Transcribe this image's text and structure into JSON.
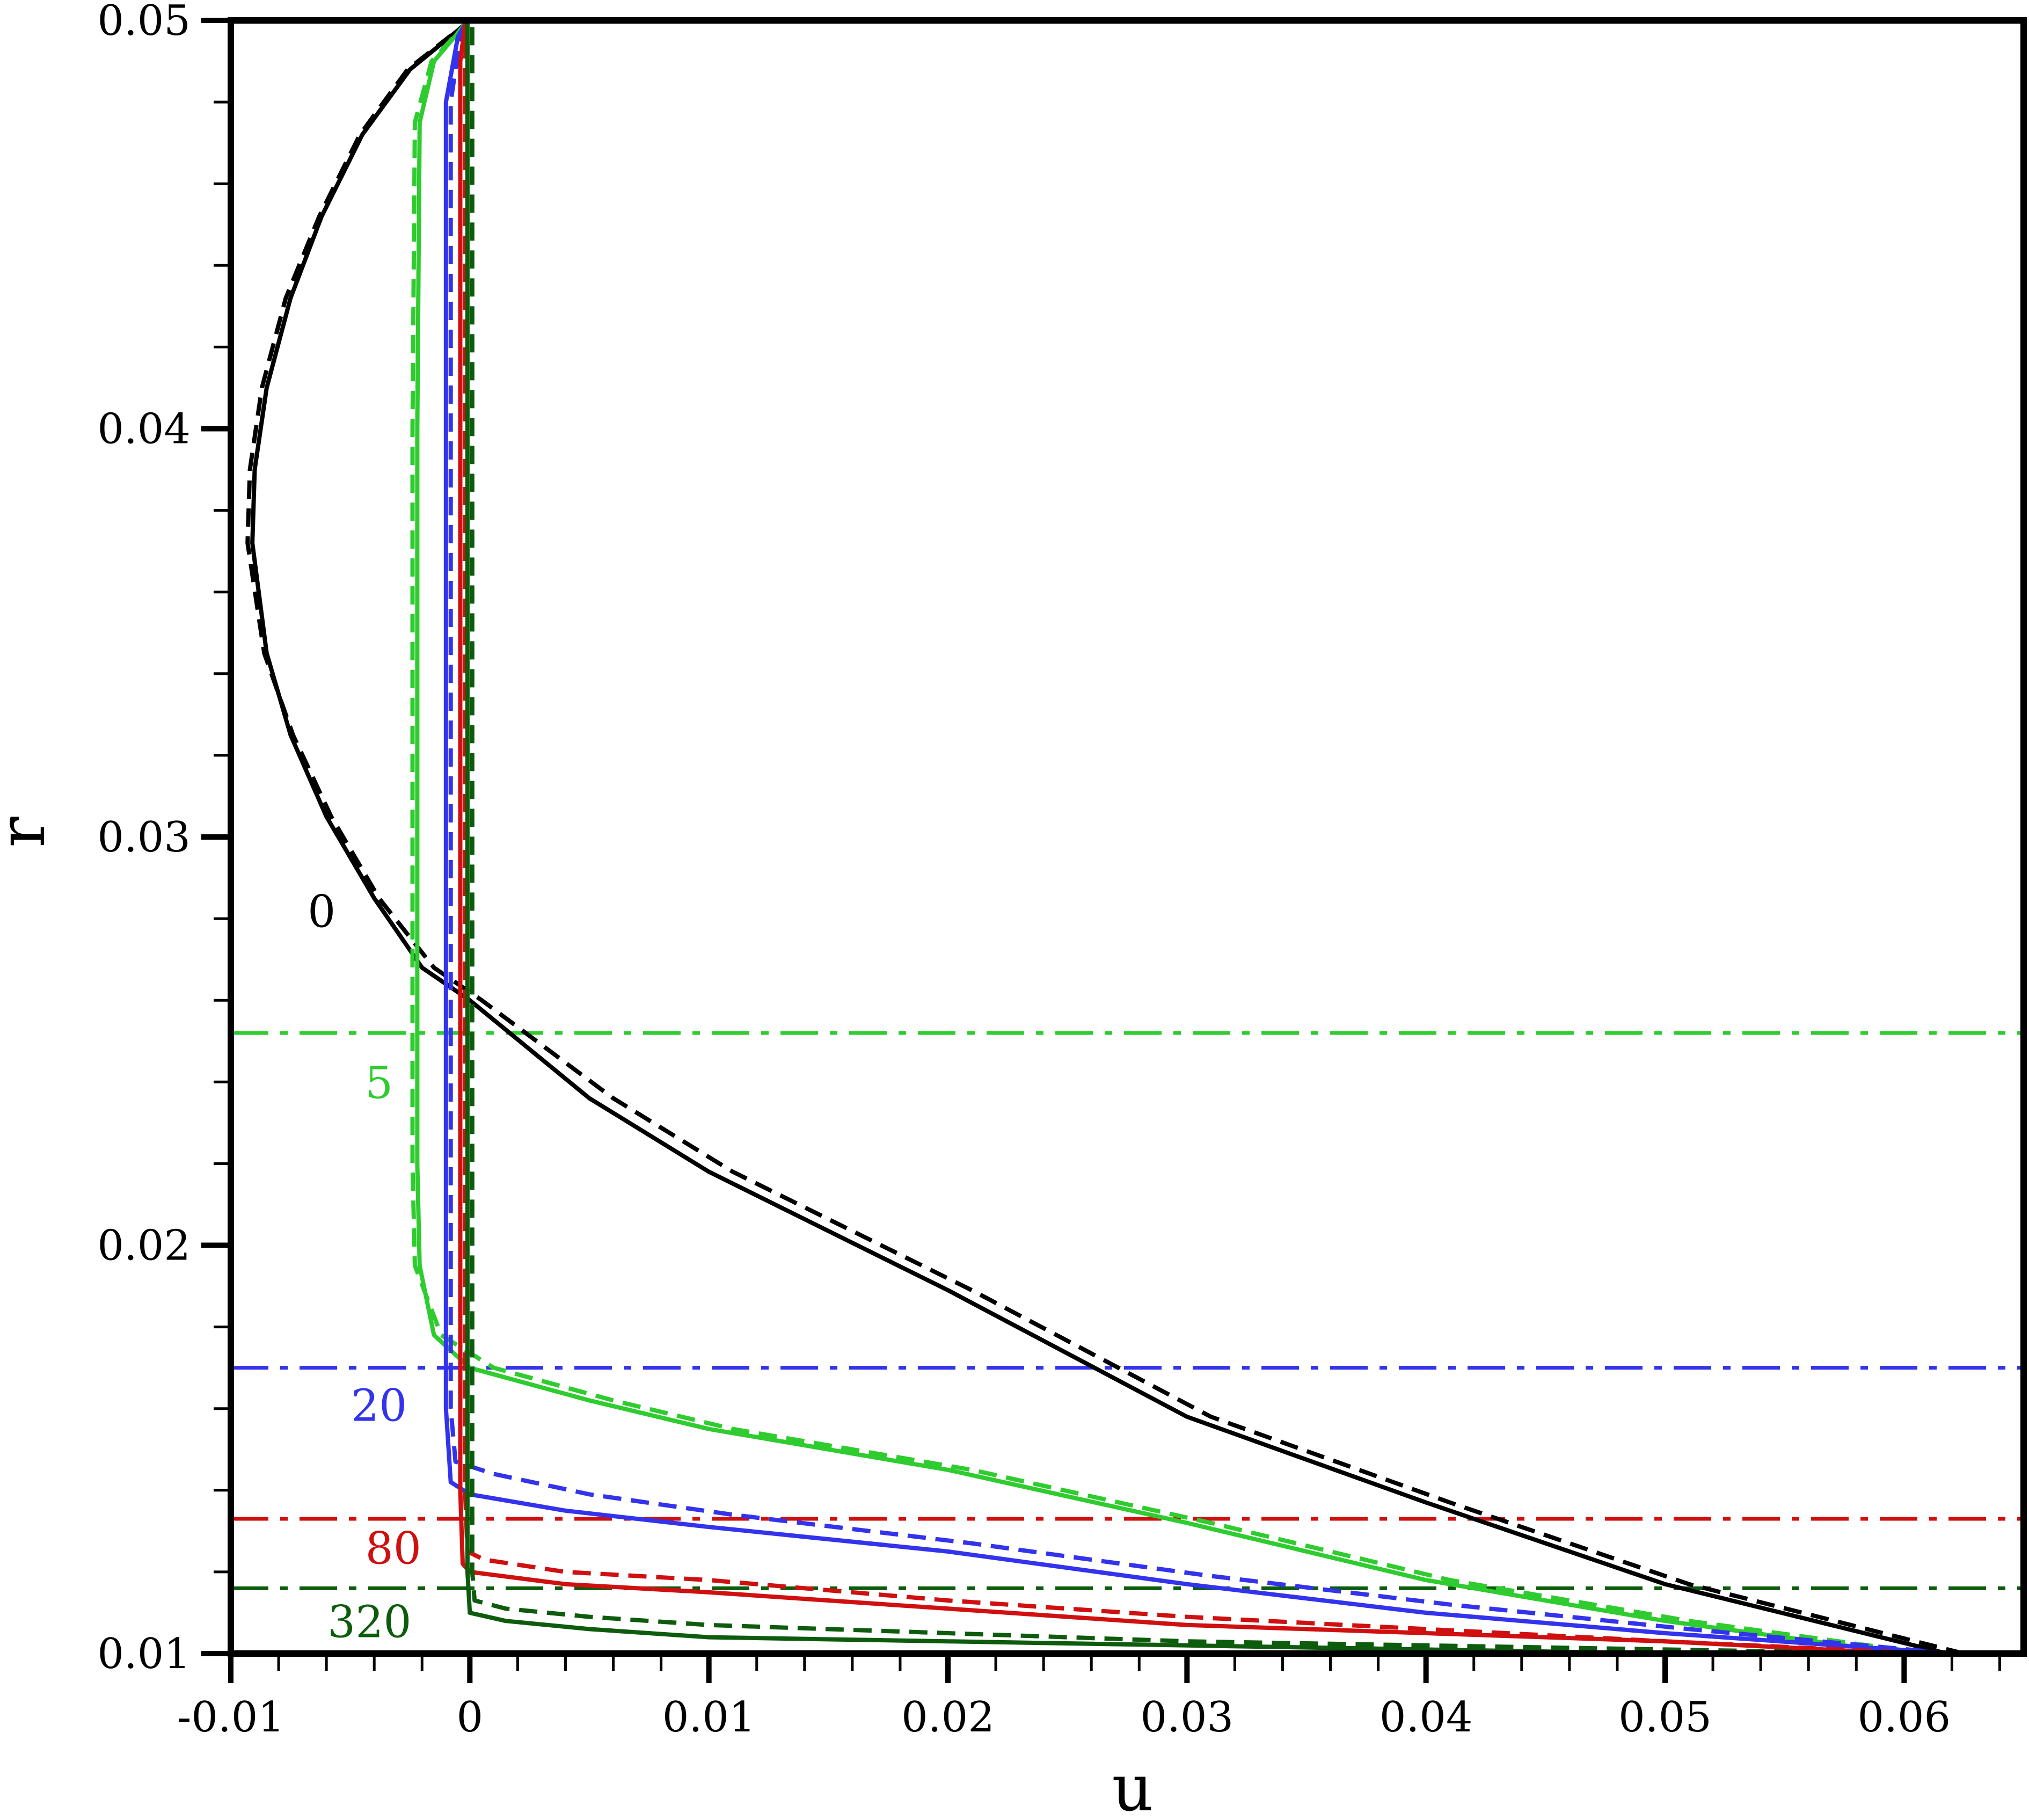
{
  "chart_data": {
    "type": "line",
    "title": "",
    "xlabel": "u",
    "ylabel": "r",
    "xlim": [
      -0.01,
      0.065
    ],
    "ylim": [
      0.01,
      0.05
    ],
    "grid": false,
    "legend": "none",
    "x_ticks": [
      "-0.01",
      "0",
      "0.01",
      "0.02",
      "0.03",
      "0.04",
      "0.05",
      "0.06"
    ],
    "x_tick_values": [
      -0.01,
      0,
      0.01,
      0.02,
      0.03,
      0.04,
      0.05,
      0.06
    ],
    "y_ticks": [
      "0.01",
      "0.02",
      "0.03",
      "0.04",
      "0.05"
    ],
    "y_tick_values": [
      0.01,
      0.02,
      0.03,
      0.04,
      0.05
    ],
    "series": [
      {
        "label": "0",
        "color": "#000000",
        "solid": [
          [
            0.0618,
            0.01
          ],
          [
            0.05,
            0.0117
          ],
          [
            0.04,
            0.0137
          ],
          [
            0.03,
            0.0158
          ],
          [
            0.02,
            0.0189
          ],
          [
            0.01,
            0.0218
          ],
          [
            0.005,
            0.0236
          ],
          [
            0.0,
            0.026
          ],
          [
            -0.002,
            0.0268
          ],
          [
            -0.004,
            0.0285
          ],
          [
            -0.006,
            0.0305
          ],
          [
            -0.0075,
            0.0325
          ],
          [
            -0.0085,
            0.0345
          ],
          [
            -0.0091,
            0.0372
          ],
          [
            -0.009,
            0.039
          ],
          [
            -0.0085,
            0.041
          ],
          [
            -0.0075,
            0.0432
          ],
          [
            -0.0062,
            0.0452
          ],
          [
            -0.0045,
            0.0472
          ],
          [
            -0.0025,
            0.0488
          ],
          [
            -0.0002,
            0.0499
          ]
        ],
        "dashed": [
          [
            0.0625,
            0.01
          ],
          [
            0.051,
            0.0117
          ],
          [
            0.041,
            0.0137
          ],
          [
            0.031,
            0.0158
          ],
          [
            0.021,
            0.0189
          ],
          [
            0.011,
            0.0218
          ],
          [
            0.006,
            0.0236
          ],
          [
            0.0005,
            0.026
          ],
          [
            -0.0015,
            0.0268
          ],
          [
            -0.0038,
            0.0285
          ],
          [
            -0.0058,
            0.0305
          ],
          [
            -0.0074,
            0.0325
          ],
          [
            -0.0086,
            0.0345
          ],
          [
            -0.0093,
            0.0372
          ],
          [
            -0.0092,
            0.039
          ],
          [
            -0.0087,
            0.041
          ],
          [
            -0.0077,
            0.0432
          ],
          [
            -0.0063,
            0.0452
          ],
          [
            -0.0046,
            0.0472
          ],
          [
            -0.0026,
            0.0488
          ],
          [
            -0.0002,
            0.0499
          ]
        ],
        "marker_r": null
      },
      {
        "label": "5",
        "color": "#2ecc2e",
        "solid": [
          [
            0.06,
            0.01
          ],
          [
            0.05,
            0.0108
          ],
          [
            0.04,
            0.0118
          ],
          [
            0.03,
            0.0132
          ],
          [
            0.02,
            0.0145
          ],
          [
            0.01,
            0.0155
          ],
          [
            0.005,
            0.0162
          ],
          [
            0.0,
            0.017
          ],
          [
            -0.0015,
            0.0178
          ],
          [
            -0.0021,
            0.0195
          ],
          [
            -0.0022,
            0.022
          ],
          [
            -0.0022,
            0.03
          ],
          [
            -0.0022,
            0.04
          ],
          [
            -0.0021,
            0.0475
          ],
          [
            -0.0015,
            0.049
          ],
          [
            -0.0002,
            0.0499
          ]
        ],
        "dashed": [
          [
            0.061,
            0.01
          ],
          [
            0.051,
            0.0108
          ],
          [
            0.041,
            0.0118
          ],
          [
            0.031,
            0.0132
          ],
          [
            0.021,
            0.0145
          ],
          [
            0.011,
            0.0155
          ],
          [
            0.006,
            0.0162
          ],
          [
            0.001,
            0.017
          ],
          [
            -0.0012,
            0.0178
          ],
          [
            -0.0023,
            0.0195
          ],
          [
            -0.0024,
            0.022
          ],
          [
            -0.0024,
            0.03
          ],
          [
            -0.0024,
            0.04
          ],
          [
            -0.0023,
            0.0475
          ],
          [
            -0.0016,
            0.049
          ],
          [
            -0.0002,
            0.0499
          ]
        ],
        "marker_r": 0.0252
      },
      {
        "label": "20",
        "color": "#3333ee",
        "solid": [
          [
            0.062,
            0.01
          ],
          [
            0.05,
            0.0105
          ],
          [
            0.04,
            0.011
          ],
          [
            0.03,
            0.0117
          ],
          [
            0.02,
            0.0125
          ],
          [
            0.01,
            0.0131
          ],
          [
            0.004,
            0.0135
          ],
          [
            0.0,
            0.0139
          ],
          [
            -0.0008,
            0.0142
          ],
          [
            -0.001,
            0.016
          ],
          [
            -0.001,
            0.03
          ],
          [
            -0.001,
            0.048
          ],
          [
            -0.0005,
            0.0496
          ],
          [
            -0.0002,
            0.0499
          ]
        ],
        "dashed": [
          [
            0.062,
            0.01
          ],
          [
            0.051,
            0.0106
          ],
          [
            0.041,
            0.0112
          ],
          [
            0.031,
            0.0119
          ],
          [
            0.021,
            0.0127
          ],
          [
            0.011,
            0.0134
          ],
          [
            0.005,
            0.0139
          ],
          [
            0.001,
            0.0144
          ],
          [
            -0.0006,
            0.0147
          ],
          [
            -0.0008,
            0.016
          ],
          [
            -0.0008,
            0.03
          ],
          [
            -0.0008,
            0.048
          ],
          [
            -0.0004,
            0.0496
          ],
          [
            -0.0002,
            0.0499
          ]
        ],
        "marker_r": 0.017
      },
      {
        "label": "80",
        "color": "#d01010",
        "solid": [
          [
            0.06,
            0.01
          ],
          [
            0.05,
            0.0103
          ],
          [
            0.04,
            0.0105
          ],
          [
            0.03,
            0.0107
          ],
          [
            0.02,
            0.0111
          ],
          [
            0.01,
            0.0115
          ],
          [
            0.004,
            0.0117
          ],
          [
            0.0,
            0.012
          ],
          [
            -0.0003,
            0.0122
          ],
          [
            -0.0004,
            0.014
          ],
          [
            -0.0004,
            0.03
          ],
          [
            -0.0004,
            0.049
          ],
          [
            -0.0002,
            0.0499
          ]
        ],
        "dashed": [
          [
            0.061,
            0.01
          ],
          [
            0.05,
            0.0103
          ],
          [
            0.04,
            0.0106
          ],
          [
            0.03,
            0.0109
          ],
          [
            0.02,
            0.0113
          ],
          [
            0.01,
            0.0118
          ],
          [
            0.004,
            0.012
          ],
          [
            0.0006,
            0.0123
          ],
          [
            -0.0001,
            0.0125
          ],
          [
            -0.0002,
            0.014
          ],
          [
            -0.0002,
            0.03
          ],
          [
            -0.0002,
            0.049
          ],
          [
            -0.0001,
            0.0499
          ]
        ],
        "marker_r": 0.0133
      },
      {
        "label": "320",
        "color": "#0d5c0d",
        "solid": [
          [
            0.06,
            0.01
          ],
          [
            0.05,
            0.01
          ],
          [
            0.04,
            0.0101
          ],
          [
            0.03,
            0.0102
          ],
          [
            0.02,
            0.0103
          ],
          [
            0.01,
            0.0104
          ],
          [
            0.005,
            0.0106
          ],
          [
            0.0015,
            0.0108
          ],
          [
            0.0,
            0.011
          ],
          [
            -0.0001,
            0.012
          ],
          [
            -0.0001,
            0.03
          ],
          [
            -0.0001,
            0.0499
          ]
        ],
        "dashed": [
          [
            0.06,
            0.01
          ],
          [
            0.05,
            0.0101
          ],
          [
            0.04,
            0.0102
          ],
          [
            0.03,
            0.0103
          ],
          [
            0.02,
            0.0105
          ],
          [
            0.01,
            0.0107
          ],
          [
            0.005,
            0.0109
          ],
          [
            0.0015,
            0.0111
          ],
          [
            0.0002,
            0.0113
          ],
          [
            0.0001,
            0.012
          ],
          [
            0.0001,
            0.03
          ],
          [
            0.0001,
            0.0499
          ]
        ],
        "marker_r": 0.0116
      }
    ],
    "curve_labels": [
      {
        "text": "0",
        "color": "#000000",
        "x": -0.0062,
        "y": 0.0278
      },
      {
        "text": "5",
        "color": "#2ecc2e",
        "x": -0.0038,
        "y": 0.0236
      },
      {
        "text": "20",
        "color": "#3333ee",
        "x": -0.0038,
        "y": 0.0157
      },
      {
        "text": "80",
        "color": "#d01010",
        "x": -0.0032,
        "y": 0.0122
      },
      {
        "text": "320",
        "color": "#0d5c0d",
        "x": -0.0042,
        "y": 0.0104
      }
    ]
  }
}
